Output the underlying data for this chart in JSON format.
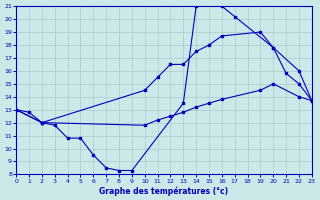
{
  "title": "Graphe des températures (°c)",
  "bg_color": "#cce8e8",
  "grid_color": "#aacccc",
  "line_color": "#0000bb",
  "xlim": [
    0,
    23
  ],
  "ylim": [
    8,
    21
  ],
  "xticks": [
    0,
    1,
    2,
    3,
    4,
    5,
    6,
    7,
    8,
    9,
    10,
    11,
    12,
    13,
    14,
    15,
    16,
    17,
    18,
    19,
    20,
    21,
    22,
    23
  ],
  "yticks": [
    8,
    9,
    10,
    11,
    12,
    13,
    14,
    15,
    16,
    17,
    18,
    19,
    20,
    21
  ],
  "line1_x": [
    0,
    1,
    2,
    3,
    4,
    5,
    6,
    7,
    8,
    9,
    13,
    14,
    15,
    16,
    17,
    20,
    21,
    22,
    23
  ],
  "line1_y": [
    13,
    12.8,
    12.0,
    11.8,
    10.8,
    10.8,
    9.5,
    8.5,
    8.3,
    8.3,
    13.5,
    21.0,
    21.3,
    21.0,
    20.2,
    17.8,
    15.8,
    15.0,
    13.7
  ],
  "line2_x": [
    0,
    2,
    10,
    11,
    12,
    13,
    14,
    15,
    16,
    19,
    20,
    22,
    23
  ],
  "line2_y": [
    13.0,
    12.0,
    14.5,
    15.5,
    16.5,
    16.5,
    17.5,
    18.0,
    18.7,
    19.0,
    17.8,
    16.0,
    13.7
  ],
  "line3_x": [
    0,
    2,
    10,
    11,
    12,
    13,
    14,
    15,
    16,
    19,
    20,
    22,
    23
  ],
  "line3_y": [
    13.0,
    12.0,
    11.8,
    12.2,
    12.5,
    12.8,
    13.2,
    13.5,
    13.8,
    14.5,
    15.0,
    14.0,
    13.7
  ]
}
